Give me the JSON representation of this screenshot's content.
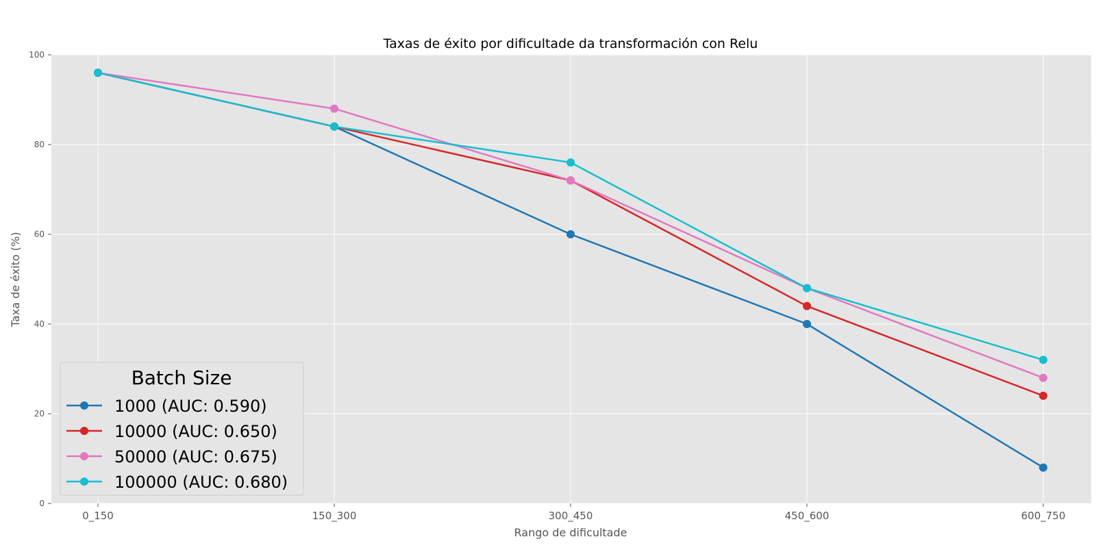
{
  "chart_data": {
    "type": "line",
    "title": "Taxas de éxito por dificultade da transformación con Relu",
    "xlabel": "Rango de dificultade",
    "ylabel": "Taxa de éxito (%)",
    "categories": [
      "0_150",
      "150_300",
      "300_450",
      "450_600",
      "600_750"
    ],
    "ylim": [
      0,
      100
    ],
    "yticks": [
      0,
      20,
      40,
      60,
      80,
      100
    ],
    "grid": true,
    "legend": {
      "title": "Batch Size",
      "position": "lower-left"
    },
    "series": [
      {
        "name": "1000 (AUC: 0.590)",
        "color": "#1f77b4",
        "values": [
          96,
          84,
          60,
          40,
          8
        ]
      },
      {
        "name": "10000 (AUC: 0.650)",
        "color": "#d62728",
        "values": [
          96,
          84,
          72,
          44,
          24
        ]
      },
      {
        "name": "50000 (AUC: 0.675)",
        "color": "#e377c2",
        "values": [
          96,
          88,
          72,
          48,
          28
        ]
      },
      {
        "name": "100000 (AUC: 0.680)",
        "color": "#17becf",
        "values": [
          96,
          84,
          76,
          48,
          32
        ]
      }
    ]
  }
}
